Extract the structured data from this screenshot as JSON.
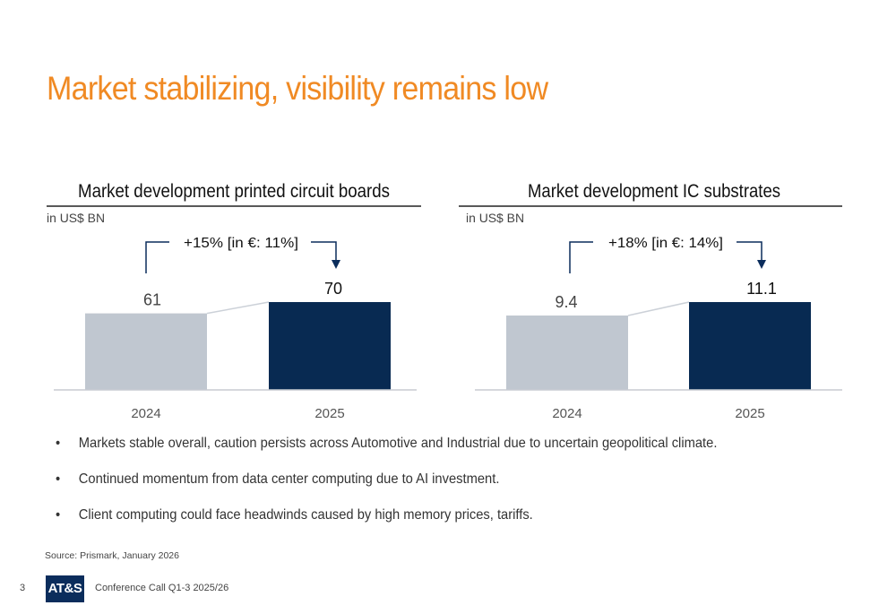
{
  "title": "Market stabilizing, visibility remains low",
  "chart_data": [
    {
      "type": "bar",
      "title": "Market development printed circuit boards",
      "unit_label": "in US$ BN",
      "categories": [
        "2024",
        "2025"
      ],
      "values": [
        61,
        70
      ],
      "data_labels": [
        "61",
        "70"
      ],
      "growth_annotation": "+15% [in €: 11%]",
      "colors": [
        "#c0c7d0",
        "#082a52"
      ]
    },
    {
      "type": "bar",
      "title": "Market development IC substrates",
      "unit_label": "in US$ BN",
      "categories": [
        "2024",
        "2025"
      ],
      "values": [
        9.4,
        11.1
      ],
      "data_labels": [
        "9.4",
        "11.1"
      ],
      "growth_annotation": "+18% [in €: 14%]",
      "colors": [
        "#c0c7d0",
        "#082a52"
      ]
    }
  ],
  "bullets": [
    "Markets stable overall, caution persists across Automotive and Industrial due to uncertain geopolitical climate.",
    "Continued momentum from data center computing due to AI investment.",
    "Client computing could face headwinds caused by high memory prices, tariffs."
  ],
  "bullet_symbol": "•",
  "source": "Source: Prismark, January 2026",
  "footer": {
    "page": "3",
    "logo": "AT&S",
    "text": "Conference Call Q1-3 2025/26"
  },
  "colors": {
    "title": "#f08a24",
    "accent": "#082a52"
  }
}
